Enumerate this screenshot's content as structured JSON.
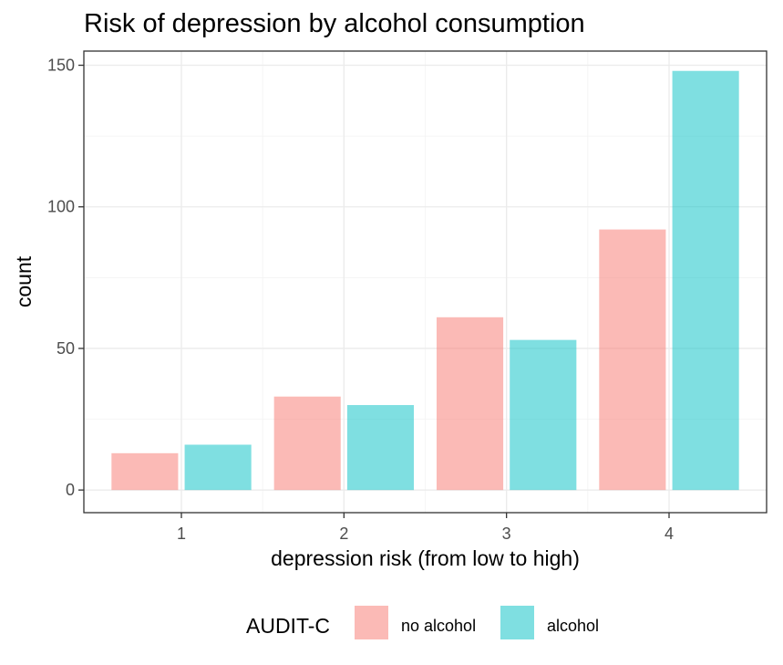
{
  "chart_data": {
    "type": "bar",
    "title": "Risk of depression by alcohol consumption",
    "xlabel": "depression risk (from low to high)",
    "ylabel": "count",
    "categories": [
      "1",
      "2",
      "3",
      "4"
    ],
    "series": [
      {
        "name": "no alcohol",
        "color": "#F8766D",
        "values": [
          13,
          33,
          61,
          92
        ]
      },
      {
        "name": "alcohol",
        "color": "#00BFC4",
        "values": [
          16,
          30,
          53,
          148
        ]
      }
    ],
    "ylim": [
      -8,
      155
    ],
    "yticks": [
      "0",
      "50",
      "100",
      "150"
    ],
    "grid": true,
    "legend": {
      "title": "AUDIT-C",
      "position": "bottom"
    }
  }
}
